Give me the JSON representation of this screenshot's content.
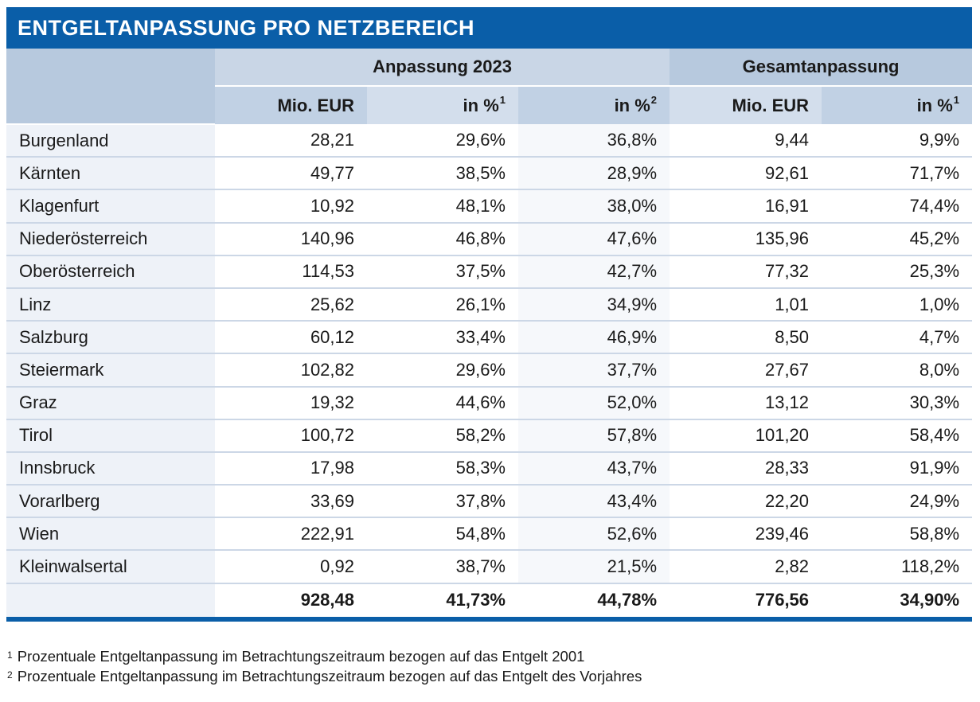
{
  "title": "ENTGELTANPASSUNG PRO NETZBEREICH",
  "groups": {
    "g1": "Anpassung 2023",
    "g2": "Gesamtanpassung"
  },
  "subheaders": [
    {
      "label": "Mio. EUR",
      "sup": ""
    },
    {
      "label": "in %",
      "sup": "1"
    },
    {
      "label": "in %",
      "sup": "2"
    },
    {
      "label": "Mio. EUR",
      "sup": ""
    },
    {
      "label": "in %",
      "sup": "1"
    }
  ],
  "rows": [
    {
      "name": "Burgenland",
      "v": [
        "28,21",
        "29,6%",
        "36,8%",
        "9,44",
        "9,9%"
      ]
    },
    {
      "name": "Kärnten",
      "v": [
        "49,77",
        "38,5%",
        "28,9%",
        "92,61",
        "71,7%"
      ]
    },
    {
      "name": "Klagenfurt",
      "v": [
        "10,92",
        "48,1%",
        "38,0%",
        "16,91",
        "74,4%"
      ]
    },
    {
      "name": "Niederösterreich",
      "v": [
        "140,96",
        "46,8%",
        "47,6%",
        "135,96",
        "45,2%"
      ]
    },
    {
      "name": "Oberösterreich",
      "v": [
        "114,53",
        "37,5%",
        "42,7%",
        "77,32",
        "25,3%"
      ]
    },
    {
      "name": "Linz",
      "v": [
        "25,62",
        "26,1%",
        "34,9%",
        "1,01",
        "1,0%"
      ]
    },
    {
      "name": "Salzburg",
      "v": [
        "60,12",
        "33,4%",
        "46,9%",
        "8,50",
        "4,7%"
      ]
    },
    {
      "name": "Steiermark",
      "v": [
        "102,82",
        "29,6%",
        "37,7%",
        "27,67",
        "8,0%"
      ]
    },
    {
      "name": "Graz",
      "v": [
        "19,32",
        "44,6%",
        "52,0%",
        "13,12",
        "30,3%"
      ]
    },
    {
      "name": "Tirol",
      "v": [
        "100,72",
        "58,2%",
        "57,8%",
        "101,20",
        "58,4%"
      ]
    },
    {
      "name": "Innsbruck",
      "v": [
        "17,98",
        "58,3%",
        "43,7%",
        "28,33",
        "91,9%"
      ]
    },
    {
      "name": "Vorarlberg",
      "v": [
        "33,69",
        "37,8%",
        "43,4%",
        "22,20",
        "24,9%"
      ]
    },
    {
      "name": "Wien",
      "v": [
        "222,91",
        "54,8%",
        "52,6%",
        "239,46",
        "58,8%"
      ]
    },
    {
      "name": "Kleinwalsertal",
      "v": [
        "0,92",
        "38,7%",
        "21,5%",
        "2,82",
        "118,2%"
      ]
    }
  ],
  "totals": [
    "928,48",
    "41,73%",
    "44,78%",
    "776,56",
    "34,90%"
  ],
  "footnotes": [
    {
      "num": "1",
      "text": "Prozentuale Entgeltanpassung im Betrachtungszeitraum bezogen auf das Entgelt 2001"
    },
    {
      "num": "2",
      "text": "Prozentuale Entgeltanpassung im Betrachtungszeitraum bezogen auf das Entgelt des Vorjahres"
    }
  ],
  "colors": {
    "title_bg": "#0a5ea8",
    "header_bg": "#c9d6e6",
    "rule": "#0a5ea8"
  }
}
